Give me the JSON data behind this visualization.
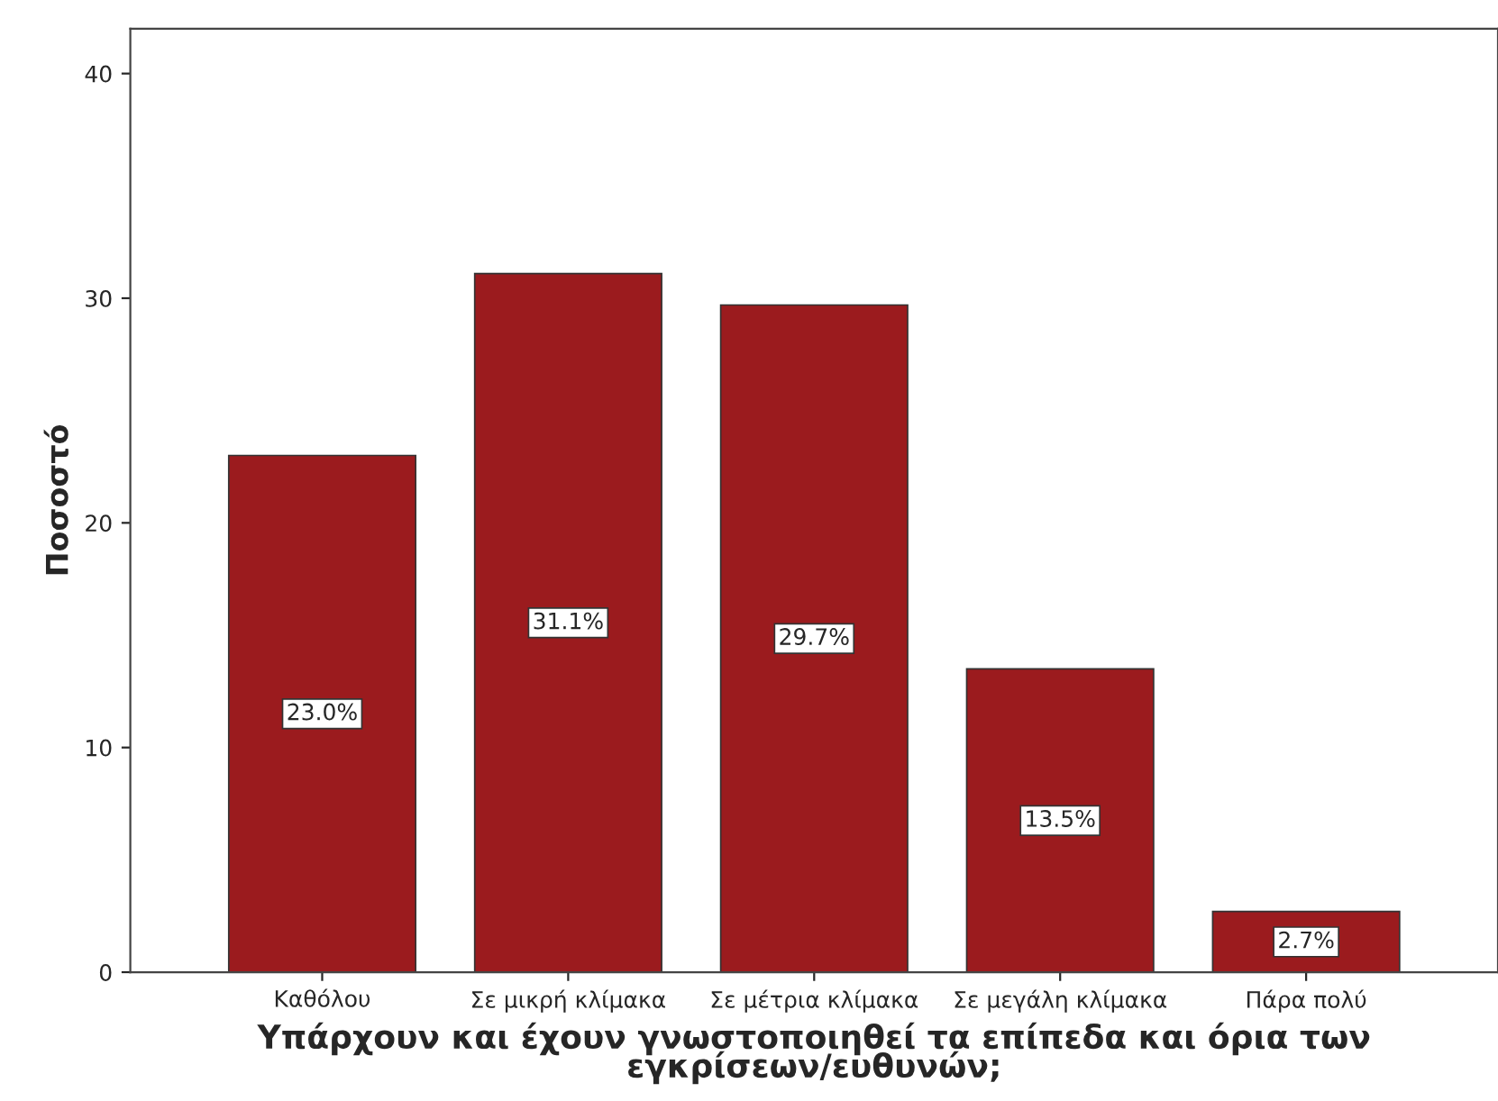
{
  "chart_data": {
    "type": "bar",
    "xlabel": "Υπάρχουν και έχουν γνωστοποιηθεί τα επίπεδα και όρια των\nεγκρίσεων/ευθυνών;",
    "ylabel": "Ποσοστό",
    "categories": [
      "Καθόλου",
      "Σε μικρή κλίμακα",
      "Σε μέτρια κλίμακα",
      "Σε μεγάλη κλίμακα",
      "Πάρα πολύ"
    ],
    "values": [
      23.0,
      31.1,
      29.7,
      13.5,
      2.7
    ],
    "value_labels": [
      "23.0%",
      "31.1%",
      "29.7%",
      "13.5%",
      "2.7%"
    ],
    "color": "#9b1b1e",
    "ylim": [
      0,
      42
    ],
    "yticks": [
      0,
      10,
      20,
      30,
      40
    ],
    "grid": false
  }
}
